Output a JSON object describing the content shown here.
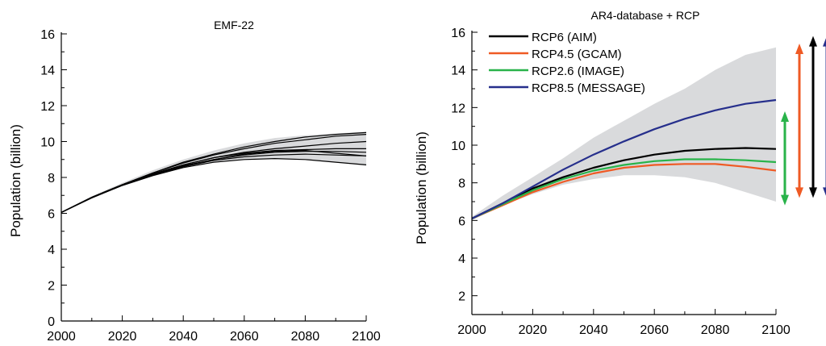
{
  "chart_data": [
    {
      "type": "line",
      "title": "EMF-22",
      "xlabel": "",
      "ylabel": "Population (billion)",
      "xlim": [
        2000,
        2100
      ],
      "ylim": [
        0,
        16
      ],
      "xticks": [
        2000,
        2020,
        2040,
        2060,
        2080,
        2100
      ],
      "yticks": [
        0,
        2,
        4,
        6,
        8,
        10,
        12,
        14,
        16
      ],
      "grid": false,
      "colors": {
        "series": "#000000",
        "band": "#d9dadc"
      },
      "x": [
        2000,
        2010,
        2020,
        2030,
        2040,
        2050,
        2060,
        2070,
        2080,
        2090,
        2100
      ],
      "band": {
        "lower": [
          6.05,
          6.85,
          7.55,
          8.1,
          8.55,
          8.85,
          9.0,
          9.05,
          9.0,
          8.85,
          8.65
        ],
        "upper": [
          6.1,
          6.95,
          7.7,
          8.4,
          9.0,
          9.5,
          9.9,
          10.2,
          10.35,
          10.45,
          10.55
        ]
      },
      "series": [
        {
          "values": [
            6.05,
            6.9,
            7.6,
            8.25,
            8.85,
            9.3,
            9.7,
            10.0,
            10.25,
            10.4,
            10.5
          ]
        },
        {
          "values": [
            6.05,
            6.9,
            7.6,
            8.25,
            8.8,
            9.25,
            9.6,
            9.9,
            10.1,
            10.3,
            10.4
          ]
        },
        {
          "values": [
            6.05,
            6.88,
            7.58,
            8.2,
            8.7,
            9.1,
            9.4,
            9.6,
            9.75,
            9.9,
            10.0
          ]
        },
        {
          "values": [
            6.05,
            6.88,
            7.58,
            8.2,
            8.7,
            9.1,
            9.35,
            9.5,
            9.55,
            9.6,
            9.6
          ]
        },
        {
          "values": [
            6.05,
            6.88,
            7.58,
            8.18,
            8.65,
            9.0,
            9.25,
            9.4,
            9.45,
            9.45,
            9.4
          ]
        },
        {
          "values": [
            6.05,
            6.87,
            7.56,
            8.15,
            8.6,
            8.95,
            9.15,
            9.25,
            9.3,
            9.25,
            9.2
          ]
        },
        {
          "values": [
            6.05,
            6.87,
            7.56,
            8.15,
            8.6,
            9.0,
            9.3,
            9.45,
            9.5,
            9.35,
            9.2
          ]
        },
        {
          "values": [
            6.05,
            6.86,
            7.55,
            8.1,
            8.55,
            8.85,
            9.0,
            9.05,
            9.0,
            8.85,
            8.7
          ]
        }
      ]
    },
    {
      "type": "line",
      "title": "AR4-database + RCP",
      "xlabel": "",
      "ylabel": "Population (billion)",
      "xlim": [
        2000,
        2100
      ],
      "ylim": [
        1,
        16
      ],
      "xticks": [
        2000,
        2020,
        2040,
        2060,
        2080,
        2100
      ],
      "yticks": [
        2,
        4,
        6,
        8,
        10,
        12,
        14,
        16
      ],
      "grid": false,
      "legend_position": "top-left",
      "colors": {
        "band": "#d9dadc"
      },
      "x": [
        2000,
        2010,
        2020,
        2030,
        2040,
        2050,
        2060,
        2070,
        2080,
        2090,
        2100
      ],
      "band": {
        "lower": [
          6.0,
          6.8,
          7.4,
          7.9,
          8.2,
          8.4,
          8.4,
          8.3,
          8.0,
          7.5,
          7.0
        ],
        "upper": [
          6.2,
          7.3,
          8.3,
          9.3,
          10.4,
          11.3,
          12.2,
          13.0,
          14.0,
          14.8,
          15.2
        ]
      },
      "series": [
        {
          "name": "RCP6 (AIM)",
          "color": "#000000",
          "values": [
            6.1,
            6.9,
            7.7,
            8.3,
            8.8,
            9.2,
            9.5,
            9.7,
            9.8,
            9.85,
            9.8
          ]
        },
        {
          "name": "RCP4.5 (GCAM)",
          "color": "#ef5a24",
          "values": [
            6.1,
            6.8,
            7.5,
            8.05,
            8.5,
            8.8,
            8.95,
            9.0,
            9.0,
            8.85,
            8.65
          ]
        },
        {
          "name": "RCP2.6 (IMAGE)",
          "color": "#29b34a",
          "values": [
            6.1,
            6.85,
            7.6,
            8.2,
            8.65,
            8.95,
            9.15,
            9.25,
            9.25,
            9.2,
            9.1
          ]
        },
        {
          "name": "RCP8.5 (MESSAGE)",
          "color": "#262f8c",
          "values": [
            6.1,
            6.9,
            7.8,
            8.7,
            9.5,
            10.2,
            10.85,
            11.4,
            11.85,
            12.2,
            12.4
          ]
        }
      ],
      "range_arrows": [
        {
          "color": "#29b34a",
          "from": 6.8,
          "to": 11.8
        },
        {
          "color": "#ef5a24",
          "from": 7.2,
          "to": 15.4
        },
        {
          "color": "#000000",
          "from": 7.2,
          "to": 15.8
        },
        {
          "color": "#262f8c",
          "from": 7.2,
          "to": 15.8
        }
      ]
    }
  ]
}
